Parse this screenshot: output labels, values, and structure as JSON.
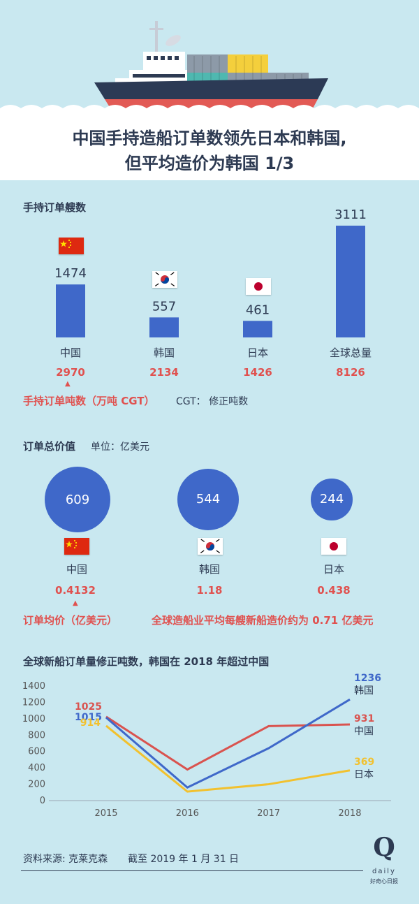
{
  "title": {
    "line1": "中国手持造船订单数领先日本和韩国,",
    "line2": "但平均造价为韩国 1/3"
  },
  "colors": {
    "bar_blue": "#3f68c9",
    "accent_red": "#e0514f",
    "china_line": "#d9534f",
    "korea_line": "#3f68c9",
    "japan_line": "#f2c12e",
    "text_dark": "#2d3a52",
    "background": "#c9e8f0"
  },
  "section1": {
    "title": "手持订单艘数",
    "tonnage_label": "手持订单吨数（万吨 CGT）",
    "cgt_note": "CGT： 修正吨数",
    "arrow_glyph": "▲"
  },
  "section2": {
    "title": "订单总价值",
    "unit": "单位：亿美元",
    "avg_label": "订单均价（亿美元）",
    "global_note": "全球造船业平均每艘新船造价约为 0.71 亿美元",
    "arrow_glyph": "▲"
  },
  "section3": {
    "title": "全球新船订单量修正吨数，韩国在 2018 年超过中国"
  },
  "footer": {
    "source": "资料来源: 克莱克森",
    "date": "截至 2019 年 1 月 31 日",
    "brand": "Q",
    "brand_word": "daily",
    "brand_tagline": "好奇心日报"
  },
  "chart_data": [
    {
      "type": "bar",
      "title": "手持订单艘数",
      "categories": [
        "中国",
        "韩国",
        "日本",
        "全球总量"
      ],
      "values": [
        1474,
        557,
        461,
        3111
      ],
      "secondary_values": {
        "name": "手持订单吨数（万吨 CGT）",
        "values": [
          "2970",
          "2134",
          "1426",
          "8126"
        ]
      },
      "flags": [
        "china-flag-icon",
        "korea-flag-icon",
        "japan-flag-icon",
        ""
      ]
    },
    {
      "type": "bubble",
      "title": "订单总价值",
      "unit": "亿美元",
      "categories": [
        "中国",
        "韩国",
        "日本"
      ],
      "values": [
        609,
        544,
        244
      ],
      "average_price": [
        "0.4132",
        "1.18",
        "0.438"
      ]
    },
    {
      "type": "line",
      "title": "全球新船订单量修正吨数，韩国在 2018 年超过中国",
      "x": [
        "2015",
        "2016",
        "2017",
        "2018"
      ],
      "ylim": [
        0,
        1400
      ],
      "yticks": [
        "0",
        "200",
        "400",
        "600",
        "800",
        "1000",
        "1200",
        "1400"
      ],
      "series": [
        {
          "name": "中国",
          "values": [
            1025,
            380,
            910,
            931
          ],
          "start_label": "1025",
          "end_label": "931"
        },
        {
          "name": "韩国",
          "values": [
            1015,
            160,
            640,
            1236
          ],
          "start_label": "1015",
          "end_label": "1236"
        },
        {
          "name": "日本",
          "values": [
            914,
            110,
            200,
            369
          ],
          "start_label": "914",
          "end_label": "369"
        }
      ]
    }
  ]
}
